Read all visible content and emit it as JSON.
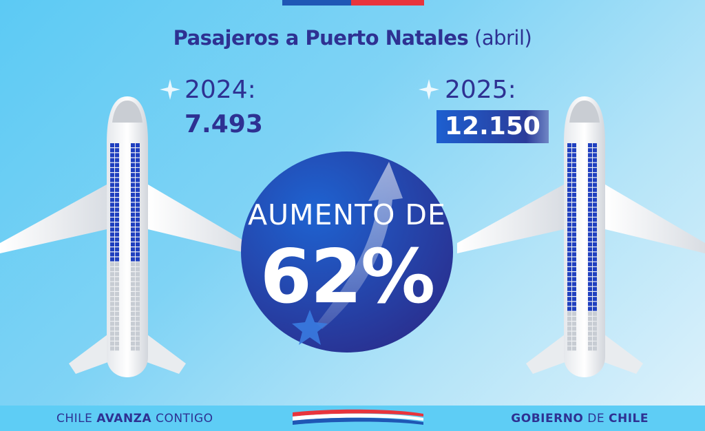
{
  "title": {
    "bold": "Pasajeros a Puerto Natales",
    "light": "(abril)"
  },
  "left": {
    "year": "2024:",
    "value": "7.493"
  },
  "right": {
    "year": "2025:",
    "value": "12.150"
  },
  "center": {
    "label": "AUMENTO DE",
    "percent": "62%"
  },
  "footer": {
    "left_a": "CHILE ",
    "left_b": "AVANZA",
    "left_c": " CONTIGO",
    "right_a": "GOBIERNO",
    "right_b": " DE ",
    "right_c": "CHILE"
  },
  "colors": {
    "navy": "#2e3192",
    "blue": "#1f57b5",
    "red": "#e8343d",
    "sky": "#5ecdf5"
  },
  "icons": [
    "sparkle-star-icon",
    "arrow-up-curve-icon",
    "airplane-icon",
    "train-logo-icon"
  ]
}
